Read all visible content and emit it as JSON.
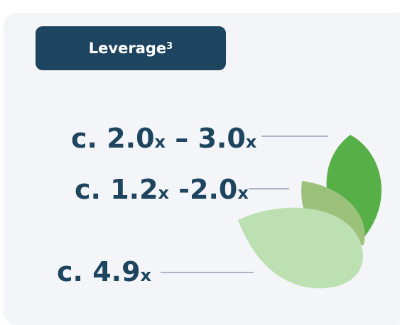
{
  "header": {
    "title": "Leverage",
    "superscript": "3"
  },
  "items": [
    [
      "c. 2.0",
      "x",
      " – 3.0",
      "x"
    ],
    [
      "c. 1.2",
      "x",
      " -2.0",
      "x"
    ],
    [
      "c. 4.9",
      "x"
    ]
  ]
}
